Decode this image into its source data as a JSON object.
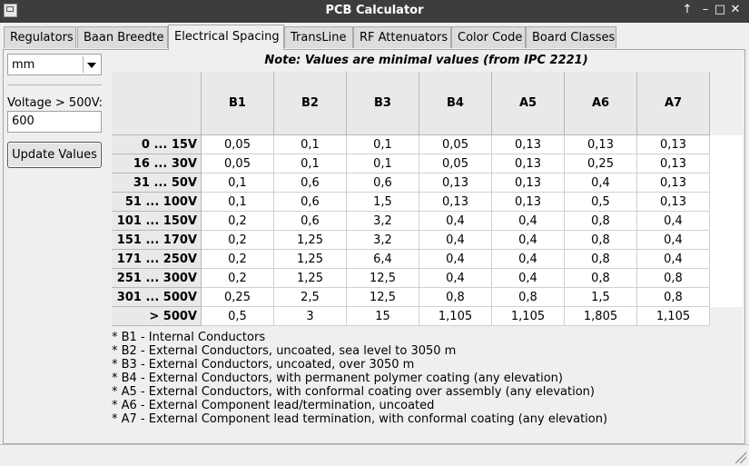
{
  "window": {
    "title": "PCB Calculator",
    "controls": {
      "up": "↑",
      "minimize": "–",
      "maximize": "□",
      "close": "✕"
    }
  },
  "tabs": [
    {
      "label": "Regulators"
    },
    {
      "label": "Baan Breedte"
    },
    {
      "label": "Electrical Spacing",
      "active": true
    },
    {
      "label": "TransLine"
    },
    {
      "label": "RF Attenuators"
    },
    {
      "label": "Color Code"
    },
    {
      "label": "Board Classes"
    }
  ],
  "sidebar": {
    "unit_value": "mm",
    "voltage_label": "Voltage > 500V:",
    "voltage_value": "600",
    "update_button": "Update Values"
  },
  "note": "Note: Values are minimal values (from IPC 2221)",
  "table": {
    "columns": [
      "B1",
      "B2",
      "B3",
      "B4",
      "A5",
      "A6",
      "A7"
    ],
    "rows": [
      {
        "label": "0 ... 15V",
        "values": [
          "0,05",
          "0,1",
          "0,1",
          "0,05",
          "0,13",
          "0,13",
          "0,13"
        ]
      },
      {
        "label": "16 ... 30V",
        "values": [
          "0,05",
          "0,1",
          "0,1",
          "0,05",
          "0,13",
          "0,25",
          "0,13"
        ]
      },
      {
        "label": "31 ... 50V",
        "values": [
          "0,1",
          "0,6",
          "0,6",
          "0,13",
          "0,13",
          "0,4",
          "0,13"
        ]
      },
      {
        "label": "51 ... 100V",
        "values": [
          "0,1",
          "0,6",
          "1,5",
          "0,13",
          "0,13",
          "0,5",
          "0,13"
        ]
      },
      {
        "label": "101 ... 150V",
        "values": [
          "0,2",
          "0,6",
          "3,2",
          "0,4",
          "0,4",
          "0,8",
          "0,4"
        ]
      },
      {
        "label": "151 ... 170V",
        "values": [
          "0,2",
          "1,25",
          "3,2",
          "0,4",
          "0,4",
          "0,8",
          "0,4"
        ]
      },
      {
        "label": "171 ... 250V",
        "values": [
          "0,2",
          "1,25",
          "6,4",
          "0,4",
          "0,4",
          "0,8",
          "0,4"
        ]
      },
      {
        "label": "251 ... 300V",
        "values": [
          "0,2",
          "1,25",
          "12,5",
          "0,4",
          "0,4",
          "0,8",
          "0,8"
        ]
      },
      {
        "label": "301 ... 500V",
        "values": [
          "0,25",
          "2,5",
          "12,5",
          "0,8",
          "0,8",
          "1,5",
          "0,8"
        ]
      },
      {
        "label": "> 500V",
        "values": [
          "0,5",
          "3",
          "15",
          "1,105",
          "1,105",
          "1,805",
          "1,105"
        ]
      }
    ]
  },
  "legend": [
    "*  B1 - Internal Conductors",
    "*  B2 - External Conductors, uncoated, sea level to 3050 m",
    "*  B3 - External Conductors, uncoated, over 3050 m",
    "*  B4 - External Conductors, with permanent polymer coating (any elevation)",
    "*  A5 - External Conductors, with conformal coating over assembly (any elevation)",
    "*  A6 - External Component lead/termination, uncoated",
    "*  A7 - External Component lead termination, with conformal coating (any elevation)"
  ],
  "colors": {
    "titlebar": "#3d3d3d",
    "window_bg": "#efefef",
    "header_bg": "#e9e9e9"
  }
}
